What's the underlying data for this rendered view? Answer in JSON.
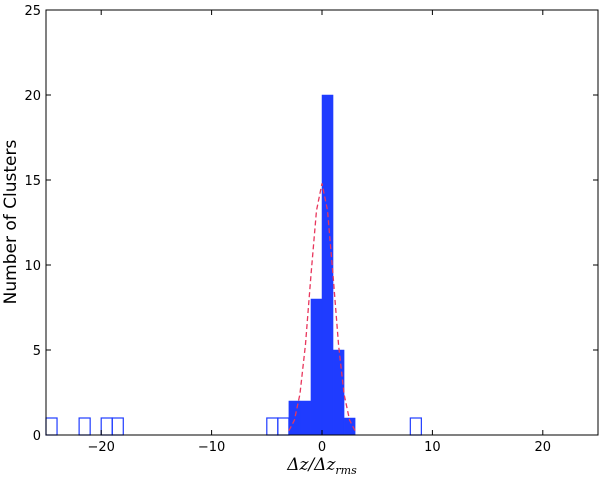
{
  "chart_data": {
    "type": "histogram",
    "ylabel": "Number of Clusters",
    "xlabel": [
      "Δz/Δz",
      "rms"
    ],
    "xlim": [
      -25,
      25
    ],
    "ylim": [
      0,
      25
    ],
    "xticks": [
      {
        "value": -20,
        "label": "−20"
      },
      {
        "value": -10,
        "label": "−10"
      },
      0,
      10,
      20
    ],
    "yticks": [
      0,
      5,
      10,
      15,
      20,
      25
    ],
    "histograms": [
      {
        "bins": [
          -25,
          -24,
          -23,
          -22,
          -21,
          -20,
          -19,
          -18,
          -17,
          -16,
          -15,
          -14,
          -13,
          -12,
          -11,
          -10,
          -9,
          -8,
          -7,
          -6,
          -5,
          -4,
          -3,
          -2,
          -1,
          0,
          1,
          2,
          3,
          4,
          5,
          6,
          7,
          8,
          9
        ],
        "values": [
          1,
          0,
          0,
          1,
          0,
          1,
          1,
          0,
          0,
          0,
          0,
          0,
          0,
          0,
          0,
          0,
          0,
          0,
          0,
          0,
          1,
          1,
          0,
          0,
          0,
          0,
          0,
          0,
          0,
          0,
          0,
          0,
          0,
          1
        ],
        "color": "#1f3cff",
        "filled": false
      },
      {
        "bins": [
          -3,
          -2,
          -1,
          0,
          1,
          2,
          3
        ],
        "values": [
          2,
          2,
          8,
          20,
          5,
          1
        ],
        "color": "#1f3cff",
        "filled": true
      }
    ],
    "curve": {
      "x": [
        -3,
        -2.5,
        -2,
        -1.5,
        -1,
        -0.5,
        0,
        0.5,
        1,
        1.5,
        2,
        2.5,
        3
      ],
      "values": [
        0.25,
        0.87,
        2.4,
        5.3,
        9.4,
        13.2,
        14.8,
        13.2,
        9.4,
        5.3,
        2.4,
        0.87,
        0.25
      ],
      "color": "#e8365c",
      "dashed": true
    }
  }
}
